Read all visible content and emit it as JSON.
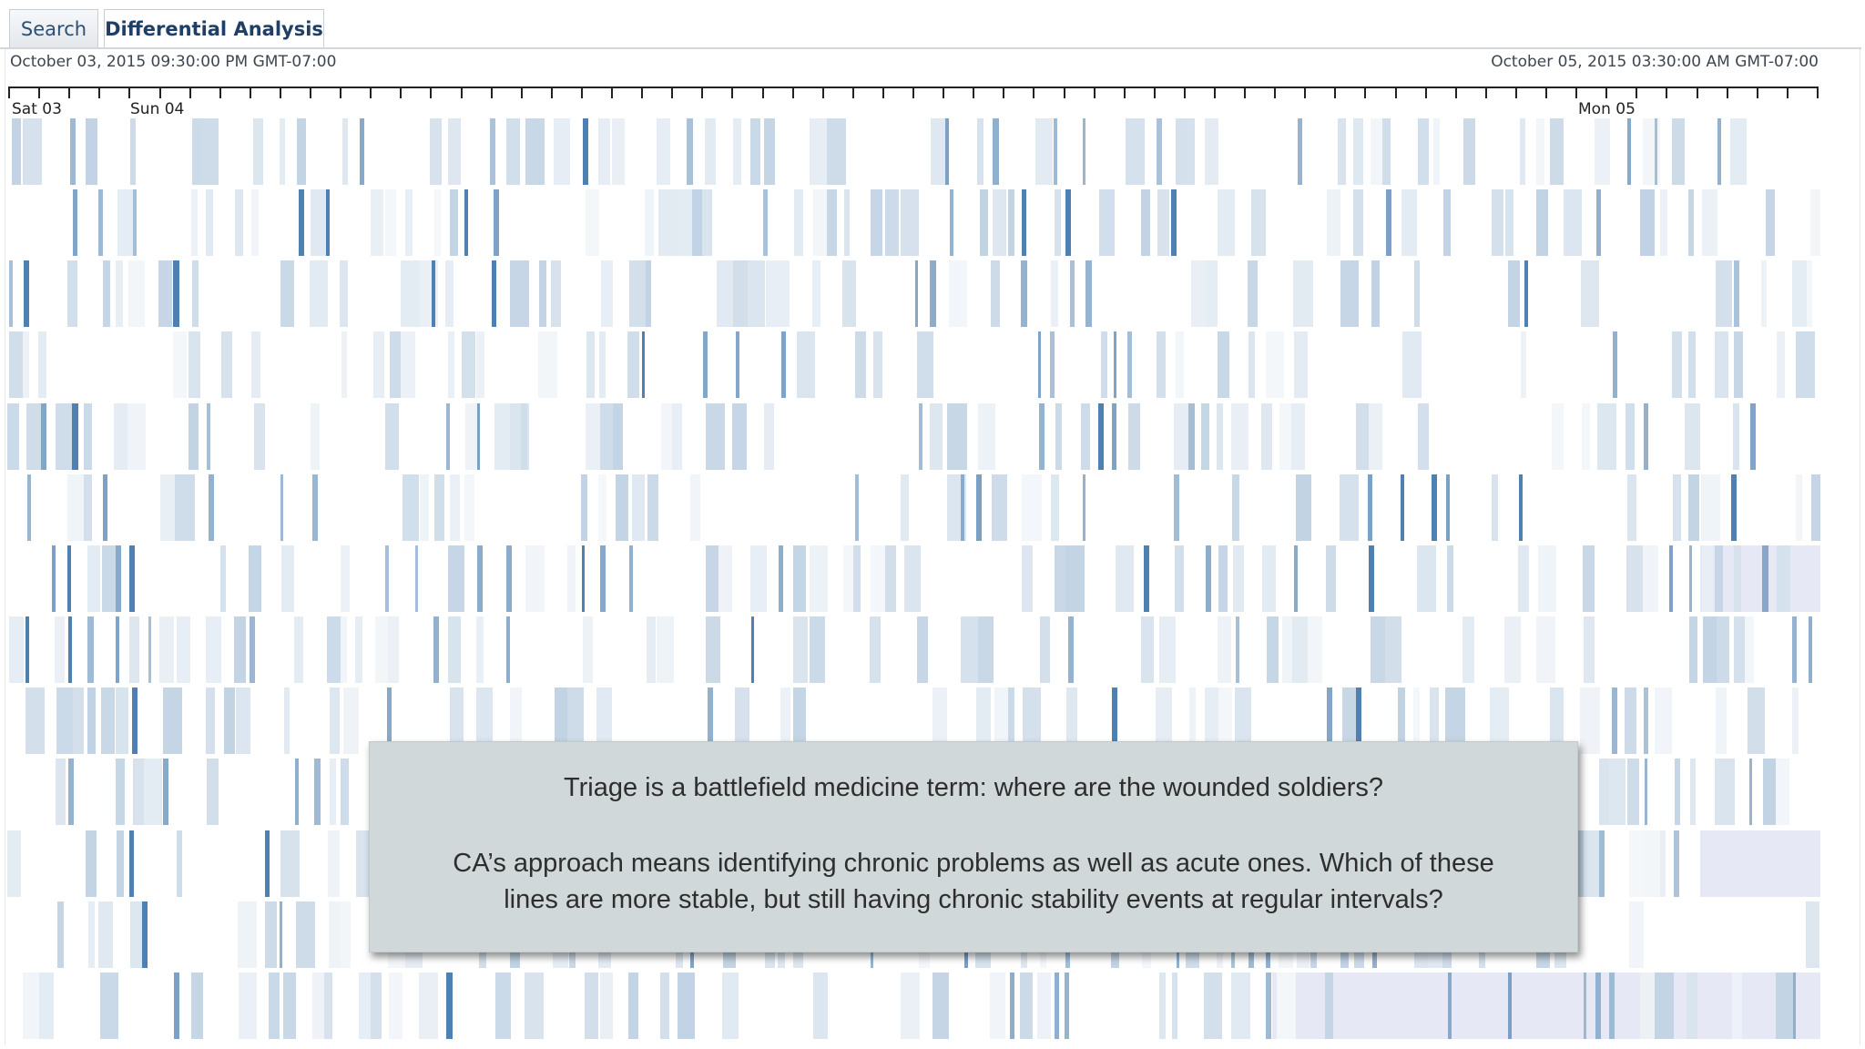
{
  "tabs": [
    {
      "label": "Search",
      "active": false
    },
    {
      "label": "Differential Analysis",
      "active": true
    }
  ],
  "time_range": {
    "start": "October 03, 2015 09:30:00 PM GMT-07:00",
    "end": "October 05, 2015 03:30:00 AM GMT-07:00"
  },
  "axis": {
    "day_labels": [
      "Sat 03",
      "Sun 04",
      "Mon 05"
    ]
  },
  "heatmap": {
    "row_count": 13,
    "accent_color": "#2f6aa3",
    "highlight_color": "#e6e9f5"
  },
  "callout": {
    "line1": "Triage is a battlefield medicine term:  where are the wounded soldiers?",
    "line2": "CA’s approach means identifying chronic problems as well as acute ones. Which of these",
    "line3": "lines are more stable, but still having chronic stability events at regular intervals?"
  }
}
